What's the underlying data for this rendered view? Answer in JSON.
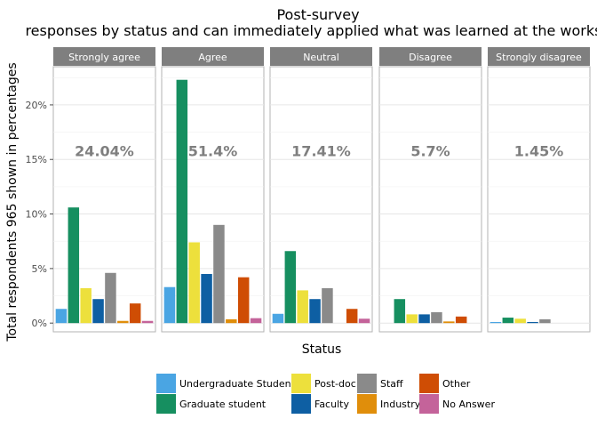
{
  "chart_data": {
    "type": "bar",
    "title": "Post-survey",
    "subtitle": "responses by status and can immediately applied what was learned at the workshop",
    "xlabel": "Status",
    "ylabel": "Total respondents 965 shown in percentages",
    "ylim": [
      -0.8,
      23.5
    ],
    "yticks": [
      0,
      5,
      10,
      15,
      20
    ],
    "ytick_labels": [
      "0%",
      "5%",
      "10%",
      "15%",
      "20%"
    ],
    "grid": true,
    "legend_position": "bottom",
    "categories": [
      "Undergraduate Student",
      "Graduate student",
      "Post-doc",
      "Faculty",
      "Staff",
      "Industry",
      "Other",
      "No Answer"
    ],
    "colors": [
      "#4aa5e3",
      "#168f60",
      "#ede03c",
      "#0e5fa3",
      "#8a8a8a",
      "#e08e0b",
      "#cf4d04",
      "#c4639a"
    ],
    "facets": [
      {
        "name": "Strongly agree",
        "total_label": "24.04%",
        "values": [
          1.3,
          10.6,
          3.2,
          2.2,
          4.6,
          0.2,
          1.8,
          0.2
        ]
      },
      {
        "name": "Agree",
        "total_label": "51.4%",
        "values": [
          3.3,
          22.3,
          7.4,
          4.5,
          9.0,
          0.35,
          4.2,
          0.45
        ]
      },
      {
        "name": "Neutral",
        "total_label": "17.41%",
        "values": [
          0.85,
          6.6,
          3.0,
          2.2,
          3.2,
          0.0,
          1.3,
          0.4
        ]
      },
      {
        "name": "Disagree",
        "total_label": "5.7%",
        "values": [
          0.0,
          2.2,
          0.8,
          0.8,
          1.0,
          0.15,
          0.6,
          0.0
        ]
      },
      {
        "name": "Strongly disagree",
        "total_label": "1.45%",
        "values": [
          0.1,
          0.5,
          0.4,
          0.1,
          0.35,
          0.0,
          0.0,
          0.0
        ]
      }
    ]
  }
}
